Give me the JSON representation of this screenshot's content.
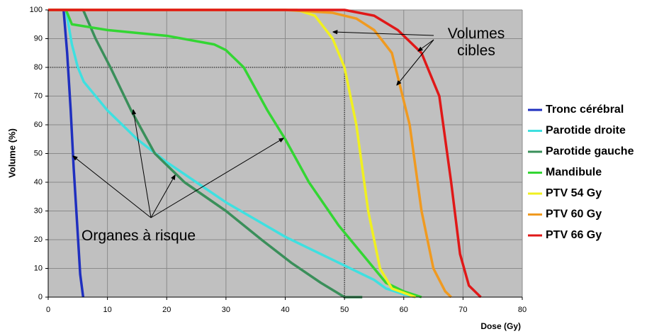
{
  "chart_data": {
    "type": "line",
    "x_label": "Dose (Gy)",
    "y_label": "Volume (%)",
    "xlim": [
      0,
      80
    ],
    "ylim": [
      0,
      100
    ],
    "xticks": [
      0,
      10,
      20,
      30,
      40,
      50,
      60,
      70,
      80
    ],
    "yticks": [
      0,
      10,
      20,
      30,
      40,
      50,
      60,
      70,
      80,
      90,
      100
    ],
    "grid": true,
    "legend": "right",
    "reference": {
      "x": 50,
      "y": 80
    },
    "annotations": [
      "Volumes cibles",
      "Organes à risque"
    ],
    "series": [
      {
        "name": "Tronc cérébral",
        "color": "#1f2fbf",
        "x": [
          0,
          2.6,
          3.2,
          3.8,
          4.3,
          4.9,
          5.4,
          5.9
        ],
        "values": [
          100,
          100,
          85,
          65,
          45,
          25,
          8,
          0
        ]
      },
      {
        "name": "Parotide droite",
        "color": "#3ee0e0",
        "x": [
          0,
          3,
          4,
          5,
          6,
          10,
          15,
          20,
          25,
          30,
          35,
          40,
          45,
          50,
          55,
          57,
          60,
          62
        ],
        "values": [
          100,
          100,
          88,
          80,
          75,
          65,
          55,
          47,
          40,
          33,
          27,
          21,
          16,
          11,
          6,
          3,
          1,
          0
        ]
      },
      {
        "name": "Parotide gauche",
        "color": "#3a8f5a",
        "x": [
          0,
          5.9,
          8,
          10.5,
          14,
          18,
          23,
          30,
          36,
          41,
          46,
          50,
          53
        ],
        "values": [
          100,
          100,
          90,
          80,
          65,
          50,
          40,
          30,
          20,
          12,
          5,
          0,
          0
        ]
      },
      {
        "name": "Mandibule",
        "color": "#33d633",
        "x": [
          0,
          3,
          4,
          10,
          20,
          28,
          30,
          33,
          37,
          40,
          44,
          49,
          53,
          57,
          60,
          63
        ],
        "values": [
          100,
          100,
          95,
          93,
          91,
          88,
          86,
          80,
          65,
          55,
          40,
          25,
          15,
          5,
          2,
          0
        ]
      },
      {
        "name": "PTV 54 Gy",
        "color": "#f0f020",
        "x": [
          0,
          42,
          45,
          48,
          50,
          52,
          54,
          56,
          58,
          62
        ],
        "values": [
          100,
          100,
          98,
          90,
          80,
          60,
          30,
          10,
          3,
          0
        ]
      },
      {
        "name": "PTV 60 Gy",
        "color": "#f09a20",
        "x": [
          0,
          40,
          48,
          52,
          55,
          58,
          61,
          63,
          65,
          67,
          68
        ],
        "values": [
          100,
          100,
          99,
          97,
          93,
          85,
          60,
          30,
          10,
          2,
          0
        ]
      },
      {
        "name": "PTV 66 Gy",
        "color": "#e01818",
        "x": [
          0,
          50,
          55,
          59,
          63,
          66,
          68,
          69.5,
          71,
          73
        ],
        "values": [
          100,
          100,
          98,
          93,
          85,
          70,
          40,
          15,
          4,
          0
        ]
      }
    ]
  }
}
